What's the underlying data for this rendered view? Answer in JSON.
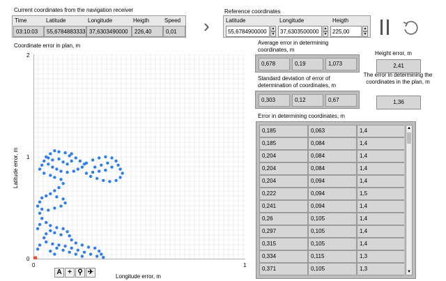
{
  "current": {
    "title": "Current coordinates from the navigation receiver",
    "headers": [
      "Time",
      "Latitude",
      "Longitude",
      "Heigth",
      "Speed"
    ],
    "values": [
      "03:10:03",
      "55,6784883333",
      "37,6303490000",
      "226,40",
      "0,01"
    ]
  },
  "arrow_glyph": "›",
  "reference": {
    "title": "Reference coordinates",
    "headers": [
      "Latitude",
      "Longitude",
      "Heigth"
    ],
    "values": [
      "55,6784900000",
      "37,6303500000",
      "225,00"
    ]
  },
  "controls": {
    "pause_icon": "pause-icon",
    "reset_icon": "reset-icon"
  },
  "plot": {
    "title": "Coordinate error in plan, m",
    "ylabel": "Latitude error, m",
    "xlabel": "Longitude error, m",
    "yticks": [
      "0",
      "1",
      "2"
    ],
    "xticks": [
      "0",
      "1"
    ],
    "point_color": "#2f7fe8",
    "marker_color": "#e8502f",
    "tools": [
      "A",
      "+",
      "⚲",
      "✈"
    ]
  },
  "chart_data": {
    "type": "scatter",
    "title": "Coordinate error in plan, m",
    "xlabel": "Longitude error, m",
    "ylabel": "Latitude error, m",
    "xlim": [
      0,
      1
    ],
    "ylim": [
      0,
      2
    ],
    "grid": true,
    "series": [
      {
        "values": [
          [
            0.1,
            1.06
          ],
          [
            0.12,
            1.05
          ],
          [
            0.15,
            1.04
          ],
          [
            0.18,
            1.03
          ],
          [
            0.08,
            1.03
          ],
          [
            0.06,
            1.0
          ],
          [
            0.05,
            0.96
          ],
          [
            0.07,
            0.93
          ],
          [
            0.09,
            0.9
          ],
          [
            0.11,
            0.88
          ],
          [
            0.13,
            0.86
          ],
          [
            0.16,
            0.85
          ],
          [
            0.19,
            0.86
          ],
          [
            0.21,
            0.88
          ],
          [
            0.23,
            0.9
          ],
          [
            0.24,
            0.93
          ],
          [
            0.22,
            0.96
          ],
          [
            0.2,
            0.99
          ],
          [
            0.17,
            1.01
          ],
          [
            0.04,
            0.92
          ],
          [
            0.03,
            0.88
          ],
          [
            0.05,
            0.84
          ],
          [
            0.08,
            0.82
          ],
          [
            0.1,
            0.8
          ],
          [
            0.13,
            0.78
          ],
          [
            0.14,
            0.74
          ],
          [
            0.12,
            0.7
          ],
          [
            0.1,
            0.67
          ],
          [
            0.08,
            0.64
          ],
          [
            0.06,
            0.62
          ],
          [
            0.04,
            0.6
          ],
          [
            0.03,
            0.56
          ],
          [
            0.02,
            0.52
          ],
          [
            0.04,
            0.49
          ],
          [
            0.07,
            0.48
          ],
          [
            0.1,
            0.5
          ],
          [
            0.13,
            0.52
          ],
          [
            0.15,
            0.55
          ],
          [
            0.14,
            0.59
          ],
          [
            0.11,
            0.61
          ],
          [
            0.25,
            0.94
          ],
          [
            0.28,
            0.97
          ],
          [
            0.31,
            0.99
          ],
          [
            0.34,
            1.0
          ],
          [
            0.37,
            0.99
          ],
          [
            0.39,
            0.96
          ],
          [
            0.4,
            0.92
          ],
          [
            0.41,
            0.88
          ],
          [
            0.42,
            0.84
          ],
          [
            0.41,
            0.8
          ],
          [
            0.39,
            0.77
          ],
          [
            0.36,
            0.76
          ],
          [
            0.33,
            0.77
          ],
          [
            0.3,
            0.79
          ],
          [
            0.27,
            0.81
          ],
          [
            0.25,
            0.84
          ],
          [
            0.29,
            0.9
          ],
          [
            0.32,
            0.92
          ],
          [
            0.35,
            0.94
          ],
          [
            0.37,
            0.9
          ],
          [
            0.34,
            0.87
          ],
          [
            0.31,
            0.86
          ],
          [
            0.28,
            0.85
          ],
          [
            0.03,
            0.45
          ],
          [
            0.04,
            0.4
          ],
          [
            0.06,
            0.36
          ],
          [
            0.08,
            0.33
          ],
          [
            0.11,
            0.31
          ],
          [
            0.14,
            0.3
          ],
          [
            0.16,
            0.27
          ],
          [
            0.17,
            0.23
          ],
          [
            0.18,
            0.19
          ],
          [
            0.2,
            0.16
          ],
          [
            0.23,
            0.14
          ],
          [
            0.26,
            0.12
          ],
          [
            0.29,
            0.11
          ],
          [
            0.31,
            0.08
          ],
          [
            0.32,
            0.05
          ],
          [
            0.33,
            0.02
          ],
          [
            0.3,
            0.03
          ],
          [
            0.27,
            0.05
          ],
          [
            0.24,
            0.07
          ],
          [
            0.21,
            0.09
          ],
          [
            0.18,
            0.11
          ],
          [
            0.15,
            0.13
          ],
          [
            0.12,
            0.14
          ],
          [
            0.09,
            0.15
          ],
          [
            0.06,
            0.17
          ],
          [
            0.05,
            0.21
          ],
          [
            0.06,
            0.25
          ],
          [
            0.08,
            0.28
          ],
          [
            0.1,
            0.26
          ],
          [
            0.13,
            0.24
          ],
          [
            0.1,
            0.05
          ],
          [
            0.08,
            0.08
          ],
          [
            0.11,
            0.11
          ],
          [
            0.14,
            0.09
          ],
          [
            0.17,
            0.07
          ],
          [
            0.2,
            0.05
          ],
          [
            0.23,
            0.03
          ],
          [
            0.02,
            0.1
          ],
          [
            0.03,
            0.14
          ],
          [
            0.02,
            0.3
          ],
          [
            0.03,
            0.34
          ],
          [
            0.18,
            0.96
          ],
          [
            0.16,
            0.93
          ],
          [
            0.14,
            0.95
          ],
          [
            0.12,
            0.98
          ],
          [
            0.09,
            0.97
          ],
          [
            0.07,
            0.99
          ]
        ]
      }
    ],
    "marker": [
      0,
      0.01
    ]
  },
  "average": {
    "title": "Average error in determining coordinates, m",
    "values": [
      "0,678",
      "0,19",
      "1,073"
    ]
  },
  "height_error": {
    "label": "Height error, m",
    "value": "2,41"
  },
  "std": {
    "title": "Standard deviation of error of determination of coordinates, m",
    "values": [
      "0,303",
      "0,12",
      "0,67"
    ]
  },
  "plan_error": {
    "label": "The error in determining the coordinates in the plan, m",
    "value": "1,36"
  },
  "table": {
    "title": "Error in determining coordinates, m",
    "rows": [
      [
        "0,185",
        "0,063",
        "1,4"
      ],
      [
        "0,185",
        "0,084",
        "1,4"
      ],
      [
        "0,204",
        "0,084",
        "1,4"
      ],
      [
        "0,204",
        "0,084",
        "1,4"
      ],
      [
        "0,204",
        "0,094",
        "1,4"
      ],
      [
        "0,222",
        "0,094",
        "1,5"
      ],
      [
        "0,241",
        "0,094",
        "1,4"
      ],
      [
        "0,26",
        "0,105",
        "1,4"
      ],
      [
        "0,297",
        "0,105",
        "1,4"
      ],
      [
        "0,315",
        "0,105",
        "1,4"
      ],
      [
        "0,334",
        "0,115",
        "1,3"
      ],
      [
        "0,371",
        "0,105",
        "1,3"
      ]
    ]
  }
}
